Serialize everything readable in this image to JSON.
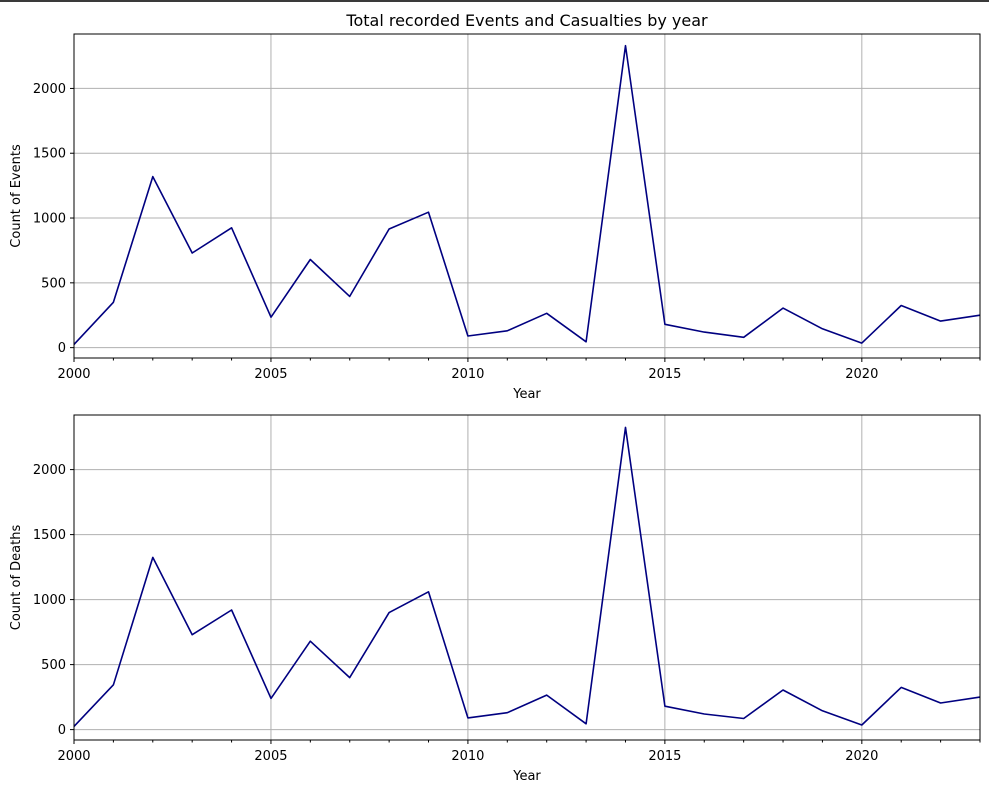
{
  "colors": {
    "line": "#000080",
    "grid": "#b0b0b0",
    "axis": "#000000",
    "background": "#ffffff"
  },
  "chart_data": [
    {
      "type": "line",
      "title": "Total recorded Events and Casualties by year",
      "xlabel": "Year",
      "ylabel": "Count of Events",
      "xlim": [
        2000,
        2023
      ],
      "ylim": [
        -80,
        2420
      ],
      "xticks": [
        2000,
        2005,
        2010,
        2015,
        2020
      ],
      "yticks": [
        0,
        500,
        1000,
        1500,
        2000
      ],
      "grid": true,
      "series": [
        {
          "x": [
            2000,
            2001,
            2002,
            2003,
            2004,
            2005,
            2006,
            2007,
            2008,
            2009,
            2010,
            2011,
            2012,
            2013,
            2014,
            2015,
            2016,
            2017,
            2018,
            2019,
            2020,
            2021,
            2022,
            2023
          ],
          "values": [
            25,
            350,
            1320,
            730,
            925,
            235,
            680,
            395,
            915,
            1045,
            90,
            130,
            265,
            45,
            2330,
            180,
            120,
            80,
            305,
            145,
            35,
            325,
            205,
            250
          ]
        }
      ]
    },
    {
      "type": "line",
      "title": "",
      "xlabel": "Year",
      "ylabel": "Count of Deaths",
      "xlim": [
        2000,
        2023
      ],
      "ylim": [
        -80,
        2420
      ],
      "xticks": [
        2000,
        2005,
        2010,
        2015,
        2020
      ],
      "yticks": [
        0,
        500,
        1000,
        1500,
        2000
      ],
      "grid": true,
      "series": [
        {
          "x": [
            2000,
            2001,
            2002,
            2003,
            2004,
            2005,
            2006,
            2007,
            2008,
            2009,
            2010,
            2011,
            2012,
            2013,
            2014,
            2015,
            2016,
            2017,
            2018,
            2019,
            2020,
            2021,
            2022,
            2023
          ],
          "values": [
            25,
            345,
            1325,
            730,
            920,
            240,
            680,
            400,
            900,
            1060,
            90,
            130,
            265,
            45,
            2325,
            180,
            120,
            85,
            305,
            145,
            35,
            325,
            205,
            250
          ]
        }
      ]
    }
  ]
}
